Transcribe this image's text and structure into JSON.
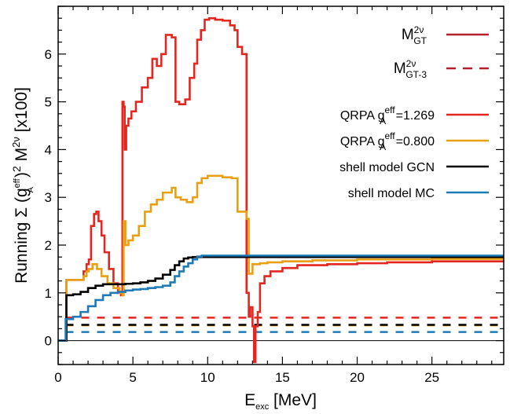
{
  "chart_data": {
    "type": "line",
    "xlabel": "E_exc [MeV]",
    "xlabel_main": "E",
    "xlabel_sub": "exc",
    "xlabel_unit": " [MeV]",
    "ylabel": "Running Σ (g_A^eff)^2 M^2ν [x100]",
    "ylabel_parts": {
      "pre": "Running Σ (g",
      "sup1": "eff",
      "sub1": "A",
      "mid": ")",
      "sup2": "2",
      "m": " M",
      "sup3": "2ν",
      "post": " [x100]"
    },
    "xlim": [
      0,
      29.8
    ],
    "ylim": [
      -0.5,
      7.0
    ],
    "xticks": [
      0,
      5,
      10,
      15,
      20,
      25
    ],
    "yticks": [
      0,
      1,
      2,
      3,
      4,
      5,
      6
    ],
    "legend_position": "top-right",
    "style_legend": [
      {
        "label_main": "M",
        "label_sup": "2ν",
        "label_sub": "GT",
        "color": "#b3202a",
        "dash": "solid"
      },
      {
        "label_main": "M",
        "label_sup": "2ν",
        "label_sub": "GT-3",
        "color": "#b3202a",
        "dash": "dashed"
      }
    ],
    "series": [
      {
        "name": "QRPA g_A^eff=1.269",
        "label_pre": "QRPA g",
        "label_sup": "eff",
        "label_sub": "A",
        "label_post": "=1.269",
        "color": "#e3261f",
        "x": [
          0,
          0.55,
          0.55,
          1.3,
          1.7,
          1.9,
          2.05,
          2.2,
          2.4,
          2.55,
          2.7,
          2.9,
          3.1,
          3.4,
          3.7,
          4.0,
          4.2,
          4.3,
          4.38,
          4.45,
          4.55,
          4.7,
          4.9,
          5.2,
          5.6,
          6.0,
          6.3,
          6.6,
          6.9,
          7.2,
          7.6,
          7.85,
          8.1,
          8.5,
          8.8,
          9.1,
          9.3,
          9.55,
          9.8,
          10.1,
          10.5,
          11.0,
          11.5,
          11.8,
          12.0,
          12.3,
          12.6,
          12.75,
          12.85,
          13.0,
          13.1,
          13.2,
          13.35,
          13.5,
          13.8,
          14.2,
          15.0,
          16.0,
          18.0,
          20.0,
          22.0,
          25.0,
          29.8
        ],
        "y": [
          0.0,
          0.0,
          1.27,
          1.27,
          1.45,
          1.6,
          1.7,
          2.4,
          2.65,
          2.7,
          2.5,
          2.2,
          1.85,
          1.5,
          1.2,
          1.0,
          0.95,
          5.0,
          4.9,
          4.0,
          4.5,
          4.65,
          4.8,
          5.0,
          5.3,
          5.5,
          5.9,
          5.75,
          6.0,
          6.4,
          6.35,
          5.0,
          4.95,
          5.05,
          5.5,
          5.8,
          6.3,
          6.5,
          6.72,
          6.75,
          6.72,
          6.7,
          6.6,
          6.5,
          6.15,
          6.0,
          1.0,
          0.5,
          0.7,
          0.3,
          -0.45,
          0.3,
          0.6,
          1.2,
          1.35,
          1.45,
          1.52,
          1.58,
          1.6,
          1.62,
          1.64,
          1.66,
          1.68
        ]
      },
      {
        "name": "QRPA g_A^eff=0.800",
        "label_pre": "QRPA g",
        "label_sup": "eff",
        "label_sub": "A",
        "label_post": "=0.800",
        "color": "#e8a012",
        "x": [
          0,
          0.55,
          0.55,
          1.3,
          1.7,
          1.9,
          2.05,
          2.3,
          2.6,
          2.9,
          3.3,
          3.7,
          4.1,
          4.3,
          4.38,
          4.5,
          4.7,
          5.0,
          5.4,
          5.8,
          6.2,
          6.6,
          7.0,
          7.6,
          7.85,
          8.2,
          8.6,
          9.0,
          9.3,
          9.6,
          10.0,
          10.5,
          11.0,
          11.6,
          12.0,
          12.6,
          12.75,
          13.0,
          13.5,
          14.0,
          15.0,
          17.0,
          20.0,
          25.0,
          29.8
        ],
        "y": [
          0.0,
          0.0,
          1.27,
          1.27,
          1.35,
          1.45,
          1.5,
          1.6,
          1.5,
          1.35,
          1.2,
          1.1,
          1.0,
          0.95,
          2.5,
          2.0,
          2.1,
          2.2,
          2.4,
          2.7,
          2.85,
          2.95,
          3.1,
          3.2,
          3.0,
          2.95,
          2.9,
          3.0,
          3.3,
          3.4,
          3.45,
          3.45,
          3.42,
          3.4,
          2.7,
          2.55,
          1.4,
          1.6,
          1.62,
          1.64,
          1.66,
          1.68,
          1.7,
          1.71,
          1.72
        ]
      },
      {
        "name": "shell model GCN",
        "label_pre": "shell model GCN",
        "label_sup": "",
        "label_sub": "",
        "label_post": "",
        "color": "#000000",
        "x": [
          0,
          0.55,
          0.55,
          1.0,
          1.5,
          2.0,
          2.5,
          3.0,
          3.5,
          4.0,
          4.5,
          5.0,
          5.5,
          6.0,
          6.5,
          7.0,
          7.5,
          7.8,
          8.1,
          8.4,
          8.7,
          9.0,
          9.5,
          10.0,
          12.0,
          15.0,
          20.0,
          29.8
        ],
        "y": [
          0.0,
          0.0,
          0.95,
          0.97,
          1.02,
          1.1,
          1.15,
          1.18,
          1.18,
          1.18,
          1.19,
          1.2,
          1.22,
          1.25,
          1.3,
          1.38,
          1.48,
          1.58,
          1.66,
          1.72,
          1.74,
          1.75,
          1.75,
          1.75,
          1.75,
          1.75,
          1.75,
          1.75
        ]
      },
      {
        "name": "shell model MC",
        "label_pre": "shell model MC",
        "label_sup": "",
        "label_sub": "",
        "label_post": "",
        "color": "#1f7ab8",
        "x": [
          0,
          0.5,
          0.5,
          1.0,
          1.5,
          2.0,
          2.5,
          3.0,
          3.5,
          4.0,
          4.5,
          5.0,
          5.5,
          6.0,
          6.5,
          7.0,
          7.5,
          7.8,
          8.1,
          8.4,
          8.7,
          9.0,
          9.3,
          9.6,
          10.0,
          12.0,
          15.0,
          20.0,
          29.8
        ],
        "y": [
          0.0,
          0.0,
          0.45,
          0.5,
          0.6,
          0.72,
          0.85,
          0.95,
          1.0,
          1.02,
          1.05,
          1.07,
          1.08,
          1.1,
          1.12,
          1.15,
          1.22,
          1.35,
          1.45,
          1.55,
          1.62,
          1.7,
          1.76,
          1.78,
          1.78,
          1.78,
          1.78,
          1.78,
          1.78
        ]
      }
    ],
    "dashed_series": [
      {
        "color": "#e3261f",
        "x": [
          0.5,
          29.8
        ],
        "y": [
          0.48,
          0.48
        ]
      },
      {
        "color": "#e8a012",
        "x": [
          0.5,
          29.8
        ],
        "y": [
          0.32,
          0.32
        ]
      },
      {
        "color": "#000000",
        "x": [
          0.5,
          29.8
        ],
        "y": [
          0.33,
          0.33
        ]
      },
      {
        "color": "#1f7ab8",
        "x": [
          0.5,
          29.8
        ],
        "y": [
          0.18,
          0.18
        ]
      }
    ]
  }
}
